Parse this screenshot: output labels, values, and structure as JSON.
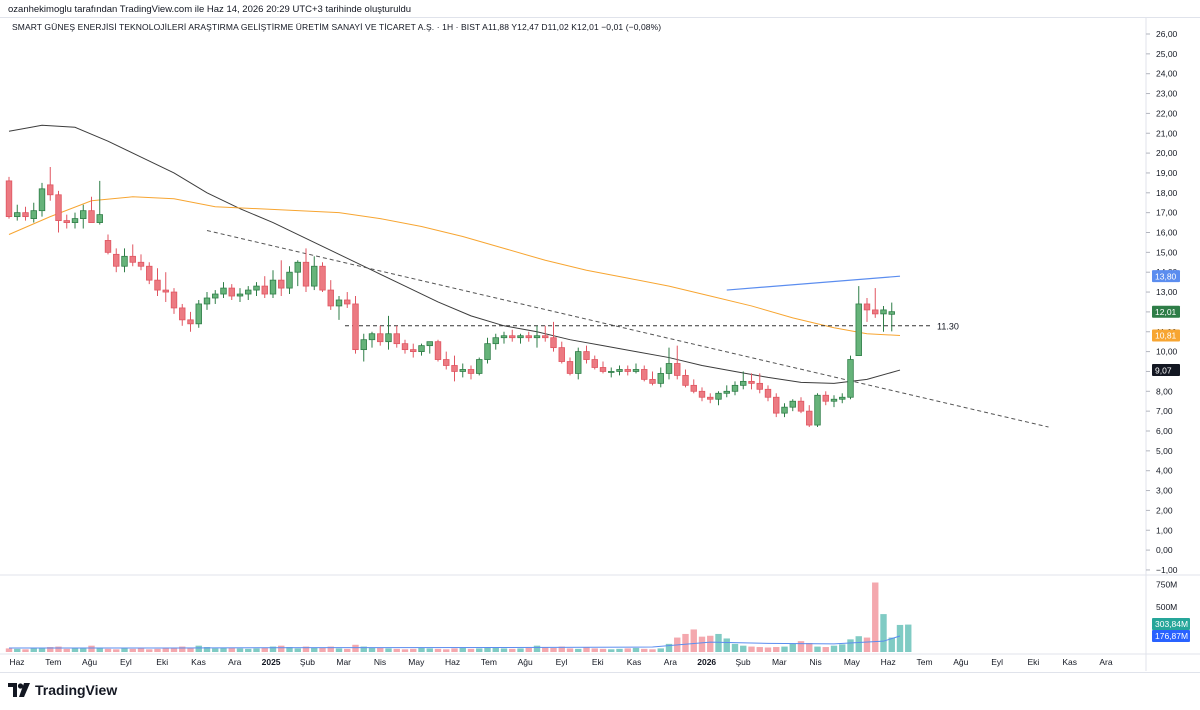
{
  "header": {
    "credit": "ozanhekimoglu tarafından TradingView.com ile Haz 14, 2026 20:29 UTC+3 tarihinde oluşturuldu"
  },
  "symbol_line": "SMART GÜNEŞ ENERJİSİ TEKNOLOJİLERİ ARAŞTIRMA GELİŞTİRME ÜRETİM SANAYİ VE TİCARET A.Ş. · 1H · BIST   A11,88  Y12,47  D11,02  K12,01  −0,01 (−0,08%)",
  "brand": {
    "name": "TradingView",
    "logo_icon": "tradingview-logo-icon"
  },
  "colors": {
    "up": "#2e7d47",
    "up_body": "#66b37a",
    "down": "#e05561",
    "down_body": "#ec7a82",
    "ma_short": "#f7a531",
    "ma_long": "#3c3c3c",
    "blue_line": "#5b8def",
    "vol_up": "#80cbc4",
    "vol_down": "#f4a8ae",
    "vol_ma": "#5b8def"
  },
  "chart_data": {
    "type": "candlestick",
    "interval": "1W",
    "price_axis": {
      "ticks": [
        "26,00",
        "25,00",
        "24,00",
        "23,00",
        "22,00",
        "21,00",
        "20,00",
        "19,00",
        "18,00",
        "17,00",
        "16,00",
        "15,00",
        "14,00",
        "13,00",
        "12,00",
        "11,00",
        "10,00",
        "9,00",
        "8,00",
        "7,00",
        "6,00",
        "5,00",
        "4,00",
        "3,00",
        "2,00",
        "1,00",
        "0,00",
        "−1,00"
      ],
      "range": [
        -1,
        26.5
      ]
    },
    "time_axis": {
      "labels": [
        "Haz",
        "Tem",
        "Ağu",
        "Eyl",
        "Eki",
        "Kas",
        "Ara",
        "2025",
        "Şub",
        "Mar",
        "Nis",
        "May",
        "Haz",
        "Tem",
        "Ağu",
        "Eyl",
        "Eki",
        "Kas",
        "Ara",
        "2026",
        "Şub",
        "Mar",
        "Nis",
        "May",
        "Haz",
        "Tem",
        "Ağu",
        "Eyl",
        "Eki",
        "Kas",
        "Ara"
      ],
      "bold": [
        "2025",
        "2026"
      ]
    },
    "candles": [
      [
        18.6,
        18.8,
        16.7,
        16.8
      ],
      [
        16.8,
        17.4,
        16.6,
        17.0
      ],
      [
        17.0,
        17.3,
        16.6,
        16.8
      ],
      [
        16.7,
        17.5,
        16.5,
        17.1
      ],
      [
        17.1,
        18.5,
        16.8,
        18.2
      ],
      [
        18.4,
        19.3,
        17.6,
        17.9
      ],
      [
        17.9,
        18.1,
        16.0,
        16.6
      ],
      [
        16.6,
        16.9,
        16.2,
        16.5
      ],
      [
        16.5,
        17.0,
        16.2,
        16.7
      ],
      [
        16.7,
        17.4,
        16.2,
        17.1
      ],
      [
        17.1,
        17.8,
        16.5,
        16.5
      ],
      [
        16.5,
        18.6,
        16.4,
        16.9
      ],
      [
        15.6,
        15.9,
        14.9,
        15.0
      ],
      [
        14.9,
        15.2,
        14.0,
        14.3
      ],
      [
        14.3,
        15.2,
        14.0,
        14.8
      ],
      [
        14.8,
        15.4,
        14.3,
        14.5
      ],
      [
        14.5,
        14.9,
        14.1,
        14.3
      ],
      [
        14.3,
        14.5,
        13.4,
        13.6
      ],
      [
        13.6,
        14.2,
        12.8,
        13.1
      ],
      [
        13.1,
        14.0,
        12.5,
        13.0
      ],
      [
        13.0,
        13.2,
        11.9,
        12.2
      ],
      [
        12.2,
        12.4,
        11.3,
        11.6
      ],
      [
        11.6,
        12.0,
        11.0,
        11.4
      ],
      [
        11.4,
        12.6,
        11.2,
        12.4
      ],
      [
        12.4,
        13.0,
        12.1,
        12.7
      ],
      [
        12.7,
        13.1,
        12.4,
        12.9
      ],
      [
        12.9,
        13.5,
        12.7,
        13.2
      ],
      [
        13.2,
        13.4,
        12.6,
        12.8
      ],
      [
        12.8,
        13.2,
        12.5,
        12.9
      ],
      [
        12.9,
        13.3,
        12.6,
        13.1
      ],
      [
        13.1,
        13.5,
        12.8,
        13.3
      ],
      [
        13.3,
        13.8,
        12.7,
        12.9
      ],
      [
        12.9,
        14.1,
        12.7,
        13.6
      ],
      [
        13.6,
        14.6,
        12.8,
        13.2
      ],
      [
        13.2,
        14.3,
        12.9,
        14.0
      ],
      [
        14.0,
        14.6,
        13.3,
        14.5
      ],
      [
        14.5,
        15.2,
        13.0,
        13.3
      ],
      [
        13.3,
        14.8,
        13.1,
        14.3
      ],
      [
        14.3,
        14.5,
        13.0,
        13.1
      ],
      [
        13.1,
        13.6,
        12.1,
        12.3
      ],
      [
        12.3,
        12.8,
        11.6,
        12.6
      ],
      [
        12.6,
        13.0,
        12.2,
        12.4
      ],
      [
        12.4,
        12.8,
        9.9,
        10.1
      ],
      [
        10.1,
        10.9,
        9.5,
        10.6
      ],
      [
        10.6,
        11.0,
        10.2,
        10.9
      ],
      [
        10.9,
        11.3,
        10.3,
        10.5
      ],
      [
        10.5,
        11.8,
        10.1,
        10.9
      ],
      [
        10.9,
        11.3,
        10.2,
        10.4
      ],
      [
        10.4,
        10.6,
        9.9,
        10.1
      ],
      [
        10.1,
        10.4,
        9.7,
        10.0
      ],
      [
        10.0,
        10.4,
        9.8,
        10.3
      ],
      [
        10.3,
        10.5,
        9.9,
        10.5
      ],
      [
        10.5,
        10.6,
        9.5,
        9.6
      ],
      [
        9.6,
        10.0,
        9.1,
        9.3
      ],
      [
        9.3,
        9.8,
        8.5,
        9.0
      ],
      [
        9.0,
        9.4,
        8.7,
        9.1
      ],
      [
        9.1,
        9.3,
        8.6,
        8.9
      ],
      [
        8.9,
        9.7,
        8.8,
        9.6
      ],
      [
        9.6,
        10.7,
        9.4,
        10.4
      ],
      [
        10.4,
        10.9,
        10.1,
        10.7
      ],
      [
        10.7,
        11.0,
        10.4,
        10.8
      ],
      [
        10.8,
        11.1,
        10.5,
        10.7
      ],
      [
        10.7,
        10.9,
        10.4,
        10.8
      ],
      [
        10.8,
        11.0,
        10.5,
        10.7
      ],
      [
        10.7,
        11.3,
        10.2,
        10.8
      ],
      [
        10.8,
        11.3,
        10.5,
        10.7
      ],
      [
        10.7,
        11.5,
        10.0,
        10.2
      ],
      [
        10.2,
        10.5,
        9.4,
        9.5
      ],
      [
        9.5,
        9.7,
        8.8,
        8.9
      ],
      [
        8.9,
        10.2,
        8.6,
        10.0
      ],
      [
        10.0,
        10.3,
        9.4,
        9.6
      ],
      [
        9.6,
        9.8,
        9.1,
        9.2
      ],
      [
        9.2,
        9.5,
        8.9,
        9.0
      ],
      [
        9.0,
        9.2,
        8.7,
        9.0
      ],
      [
        9.0,
        9.3,
        8.8,
        9.1
      ],
      [
        9.1,
        9.3,
        8.8,
        9.0
      ],
      [
        9.0,
        9.4,
        8.9,
        9.1
      ],
      [
        9.1,
        9.3,
        8.5,
        8.6
      ],
      [
        8.6,
        9.0,
        8.3,
        8.4
      ],
      [
        8.4,
        9.2,
        8.2,
        8.9
      ],
      [
        8.9,
        10.2,
        8.6,
        9.4
      ],
      [
        9.4,
        10.3,
        8.6,
        8.8
      ],
      [
        8.8,
        9.1,
        8.2,
        8.3
      ],
      [
        8.3,
        8.6,
        7.9,
        8.0
      ],
      [
        8.0,
        8.2,
        7.5,
        7.7
      ],
      [
        7.7,
        7.9,
        7.4,
        7.6
      ],
      [
        7.6,
        8.0,
        7.3,
        7.9
      ],
      [
        7.9,
        8.3,
        7.7,
        8.0
      ],
      [
        8.0,
        8.5,
        7.8,
        8.3
      ],
      [
        8.3,
        9.0,
        8.1,
        8.5
      ],
      [
        8.5,
        8.9,
        8.1,
        8.4
      ],
      [
        8.4,
        8.9,
        7.9,
        8.1
      ],
      [
        8.1,
        8.3,
        7.5,
        7.7
      ],
      [
        7.7,
        7.9,
        6.7,
        6.9
      ],
      [
        6.9,
        7.4,
        6.7,
        7.2
      ],
      [
        7.2,
        7.6,
        7.0,
        7.5
      ],
      [
        7.5,
        7.7,
        6.9,
        7.0
      ],
      [
        7.0,
        7.3,
        6.2,
        6.3
      ],
      [
        6.3,
        7.9,
        6.2,
        7.8
      ],
      [
        7.8,
        8.0,
        7.3,
        7.5
      ],
      [
        7.5,
        7.8,
        7.2,
        7.6
      ],
      [
        7.6,
        7.9,
        7.4,
        7.7
      ],
      [
        7.7,
        9.8,
        7.6,
        9.6
      ],
      [
        9.8,
        13.3,
        9.9,
        12.4
      ],
      [
        12.4,
        12.7,
        11.5,
        12.1
      ],
      [
        12.1,
        13.2,
        11.7,
        11.9
      ],
      [
        11.9,
        12.3,
        11.0,
        12.1
      ],
      [
        11.88,
        12.47,
        11.02,
        12.01
      ]
    ],
    "volume_millions": [
      40,
      35,
      30,
      45,
      40,
      55,
      60,
      35,
      40,
      45,
      70,
      50,
      35,
      30,
      40,
      35,
      40,
      30,
      35,
      40,
      50,
      60,
      45,
      70,
      55,
      40,
      45,
      50,
      40,
      35,
      40,
      45,
      60,
      70,
      55,
      40,
      60,
      50,
      45,
      60,
      40,
      35,
      80,
      60,
      50,
      45,
      40,
      35,
      30,
      35,
      45,
      40,
      35,
      30,
      40,
      50,
      35,
      40,
      55,
      45,
      40,
      35,
      40,
      45,
      70,
      55,
      45,
      60,
      40,
      35,
      50,
      40,
      35,
      30,
      35,
      40,
      45,
      35,
      30,
      40,
      90,
      160,
      200,
      250,
      170,
      180,
      200,
      150,
      90,
      70,
      60,
      55,
      50,
      55,
      60,
      90,
      120,
      100,
      60,
      55,
      70,
      85,
      140,
      175,
      160,
      770,
      420,
      160,
      300,
      303.84
    ],
    "volume_axis": {
      "ticks": [
        "750M",
        "500M"
      ]
    },
    "price_labels": [
      {
        "text": "13,80",
        "value": 13.8,
        "color": "#5b8def"
      },
      {
        "text": "12,01",
        "value": 12.01,
        "color": "#2e7d47"
      },
      {
        "text": "10,81",
        "value": 10.81,
        "color": "#f7a531"
      },
      {
        "text": "9,07",
        "value": 9.07,
        "color": "#131722"
      }
    ],
    "volume_labels": [
      {
        "text": "303,84M",
        "value": 303.84,
        "color": "#26a69a"
      },
      {
        "text": "176,87M",
        "value": 176.87,
        "color": "#2962ff"
      }
    ],
    "horizontal_line": {
      "value": 11.3,
      "label": "11.30"
    },
    "ma_short": [
      [
        0,
        15.9
      ],
      [
        5,
        16.8
      ],
      [
        10,
        17.6
      ],
      [
        15,
        17.8
      ],
      [
        20,
        17.7
      ],
      [
        25,
        17.3
      ],
      [
        30,
        17.2
      ],
      [
        35,
        17.1
      ],
      [
        40,
        17.0
      ],
      [
        45,
        16.7
      ],
      [
        50,
        16.3
      ],
      [
        55,
        15.8
      ],
      [
        60,
        15.2
      ],
      [
        65,
        14.6
      ],
      [
        70,
        14.1
      ],
      [
        75,
        13.7
      ],
      [
        80,
        13.3
      ],
      [
        85,
        12.8
      ],
      [
        90,
        12.3
      ],
      [
        95,
        11.7
      ],
      [
        100,
        11.2
      ],
      [
        104,
        10.9
      ],
      [
        108,
        10.81
      ]
    ],
    "ma_long": [
      [
        0,
        21.1
      ],
      [
        4,
        21.4
      ],
      [
        8,
        21.3
      ],
      [
        12,
        20.6
      ],
      [
        16,
        19.8
      ],
      [
        20,
        19.0
      ],
      [
        24,
        18.0
      ],
      [
        28,
        17.2
      ],
      [
        32,
        16.5
      ],
      [
        36,
        15.7
      ],
      [
        40,
        14.9
      ],
      [
        44,
        14.1
      ],
      [
        48,
        13.3
      ],
      [
        52,
        12.5
      ],
      [
        56,
        11.8
      ],
      [
        60,
        11.3
      ],
      [
        64,
        11.0
      ],
      [
        68,
        10.6
      ],
      [
        72,
        10.3
      ],
      [
        76,
        10.0
      ],
      [
        80,
        9.7
      ],
      [
        84,
        9.3
      ],
      [
        88,
        9.0
      ],
      [
        92,
        8.7
      ],
      [
        96,
        8.45
      ],
      [
        100,
        8.4
      ],
      [
        104,
        8.6
      ],
      [
        108,
        9.07
      ]
    ],
    "blue_line": [
      [
        87,
        13.1
      ],
      [
        108,
        13.8
      ]
    ],
    "trendline": [
      [
        24,
        16.1
      ],
      [
        126,
        6.2
      ]
    ],
    "volume_ma": [
      [
        0,
        45
      ],
      [
        20,
        45
      ],
      [
        40,
        48
      ],
      [
        60,
        50
      ],
      [
        78,
        55
      ],
      [
        85,
        110
      ],
      [
        92,
        95
      ],
      [
        100,
        90
      ],
      [
        106,
        120
      ],
      [
        108,
        176.87
      ]
    ]
  }
}
